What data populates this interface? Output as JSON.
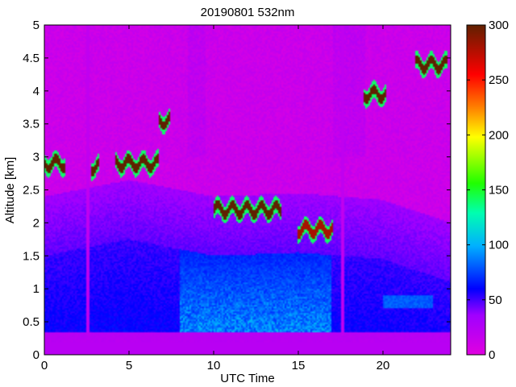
{
  "chart_data": {
    "type": "heatmap",
    "title": "20190801 532nm",
    "xlabel": "UTC Time",
    "ylabel": "Altitude [km]",
    "xlim": [
      0,
      24
    ],
    "ylim": [
      0,
      5
    ],
    "x_ticks": [
      0,
      5,
      10,
      15,
      20
    ],
    "y_ticks": [
      0,
      0.5,
      1,
      1.5,
      2,
      2.5,
      3,
      3.5,
      4,
      4.5,
      5
    ],
    "colorbar": {
      "min": 0,
      "max": 300,
      "ticks": [
        0,
        50,
        100,
        150,
        200,
        250,
        300
      ],
      "colormap": "hsv-like: magenta-blue-cyan-green-yellow-red-brown",
      "colors": [
        "#e000e0",
        "#8000ff",
        "#0000ff",
        "#00c0ff",
        "#00ff80",
        "#40ff00",
        "#ffff00",
        "#ff8000",
        "#ff0000",
        "#600000"
      ]
    },
    "features": {
      "surface_band": {
        "altitude_km": [
          0.2,
          0.3
        ],
        "level": 20
      },
      "boundary_layer_top_km": [
        [
          0,
          1.5
        ],
        [
          5,
          1.75
        ],
        [
          10,
          1.5
        ],
        [
          15,
          1.55
        ],
        [
          20,
          1.45
        ],
        [
          24,
          1.1
        ]
      ],
      "cloud_layers": [
        {
          "x_start": 0,
          "x_end": 1.2,
          "altitude_km": 2.9,
          "level": 300
        },
        {
          "x_start": 2.8,
          "x_end": 3.2,
          "altitude_km": 2.85,
          "level": 300
        },
        {
          "x_start": 4.2,
          "x_end": 6.8,
          "altitude_km": 2.9,
          "level": 300
        },
        {
          "x_start": 6.8,
          "x_end": 7.4,
          "altitude_km": 3.55,
          "level": 300
        },
        {
          "x_start": 10,
          "x_end": 14,
          "altitude_km": 2.2,
          "level": 300
        },
        {
          "x_start": 15,
          "x_end": 17,
          "altitude_km": 1.9,
          "level": 280
        },
        {
          "x_start": 18.9,
          "x_end": 20.2,
          "altitude_km": 3.95,
          "level": 300
        },
        {
          "x_start": 21.9,
          "x_end": 23.8,
          "altitude_km": 4.4,
          "level": 300
        }
      ]
    }
  }
}
